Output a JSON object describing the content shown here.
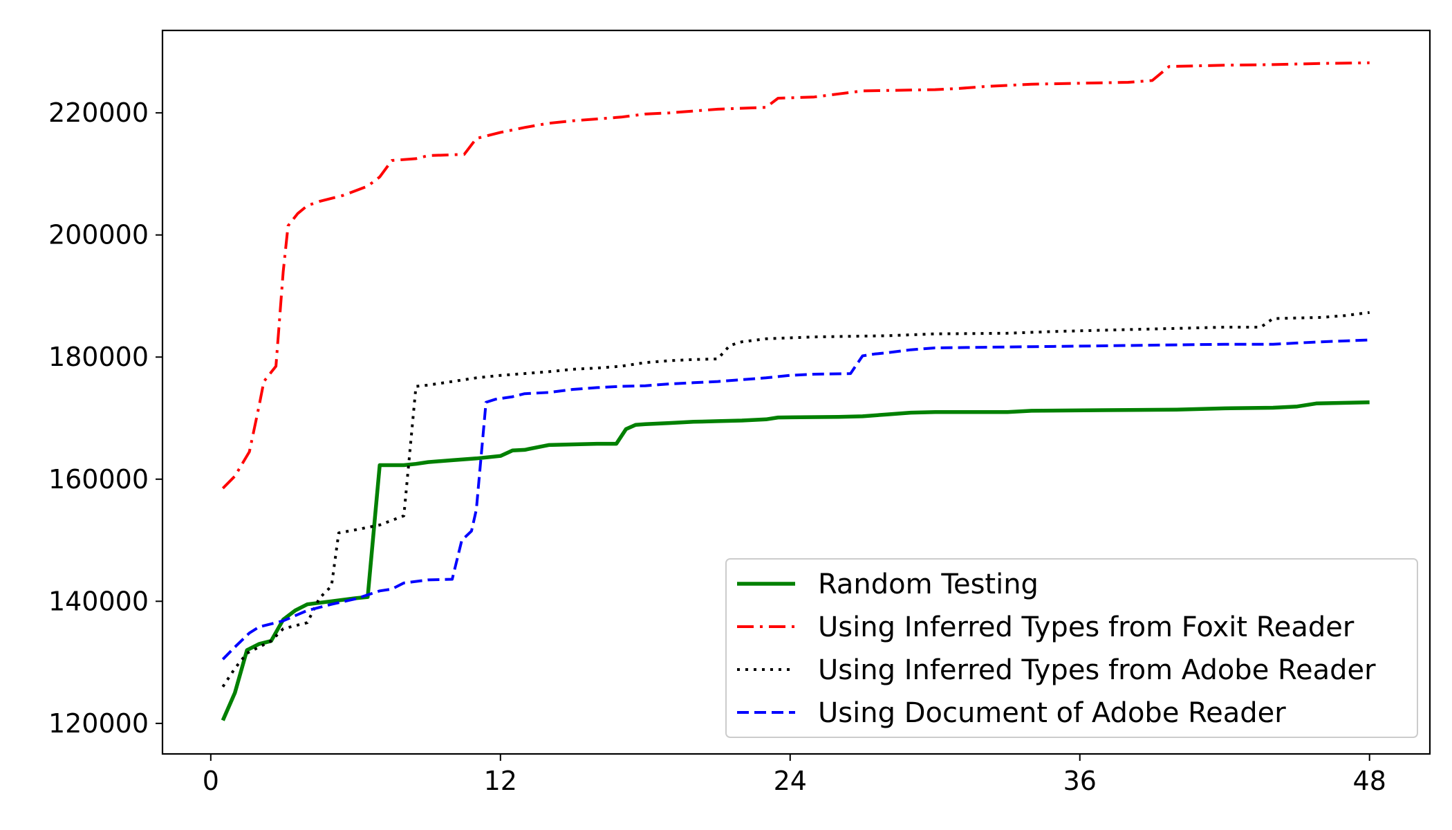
{
  "chart_data": {
    "type": "line",
    "title": "",
    "xlabel": "",
    "ylabel": "",
    "xlim": [
      -2,
      50.5
    ],
    "ylim": [
      115000,
      233500
    ],
    "x_ticks": [
      "0",
      "12",
      "24",
      "36",
      "48"
    ],
    "y_ticks": [
      "120000",
      "140000",
      "160000",
      "180000",
      "200000",
      "220000"
    ],
    "grid": false,
    "legend_position": "lower-right",
    "series": [
      {
        "name": "Random Testing",
        "color": "#008000",
        "style": "solid",
        "points": [
          [
            0.5,
            120500
          ],
          [
            1,
            125000
          ],
          [
            1.5,
            132000
          ],
          [
            2,
            133000
          ],
          [
            2.5,
            133500
          ],
          [
            3,
            137000
          ],
          [
            3.5,
            138500
          ],
          [
            4,
            139500
          ],
          [
            5,
            140000
          ],
          [
            6,
            140500
          ],
          [
            6.5,
            140700
          ],
          [
            7,
            162300
          ],
          [
            8,
            162300
          ],
          [
            8.5,
            162500
          ],
          [
            9,
            162800
          ],
          [
            10,
            163100
          ],
          [
            11,
            163400
          ],
          [
            12,
            163800
          ],
          [
            12.5,
            164700
          ],
          [
            13,
            164800
          ],
          [
            14,
            165600
          ],
          [
            15,
            165700
          ],
          [
            16,
            165800
          ],
          [
            16.8,
            165800
          ],
          [
            17.2,
            168200
          ],
          [
            17.6,
            168900
          ],
          [
            18,
            169000
          ],
          [
            19,
            169200
          ],
          [
            20,
            169400
          ],
          [
            21,
            169500
          ],
          [
            22,
            169600
          ],
          [
            23,
            169800
          ],
          [
            23.5,
            170100
          ],
          [
            26,
            170200
          ],
          [
            27,
            170300
          ],
          [
            28,
            170600
          ],
          [
            29,
            170900
          ],
          [
            30,
            171000
          ],
          [
            33,
            171000
          ],
          [
            34,
            171200
          ],
          [
            37,
            171300
          ],
          [
            40,
            171400
          ],
          [
            42,
            171600
          ],
          [
            44,
            171700
          ],
          [
            45,
            171900
          ],
          [
            45.8,
            172400
          ],
          [
            47,
            172500
          ],
          [
            48,
            172600
          ]
        ]
      },
      {
        "name": "Using Inferred Types from Foxit Reader",
        "color": "#ff0000",
        "style": "dashdot",
        "points": [
          [
            0.5,
            158500
          ],
          [
            1,
            160500
          ],
          [
            1.6,
            164500
          ],
          [
            2,
            172000
          ],
          [
            2.2,
            176000
          ],
          [
            2.5,
            177500
          ],
          [
            2.7,
            178500
          ],
          [
            3,
            194000
          ],
          [
            3.2,
            201500
          ],
          [
            3.6,
            203500
          ],
          [
            4,
            204800
          ],
          [
            4.5,
            205500
          ],
          [
            5.5,
            206500
          ],
          [
            6.5,
            208000
          ],
          [
            7,
            209500
          ],
          [
            7.5,
            212200
          ],
          [
            8.5,
            212500
          ],
          [
            9,
            213000
          ],
          [
            10.5,
            213200
          ],
          [
            11,
            215800
          ],
          [
            12,
            216800
          ],
          [
            12.5,
            217200
          ],
          [
            13,
            217600
          ],
          [
            14,
            218300
          ],
          [
            15,
            218700
          ],
          [
            16,
            219000
          ],
          [
            17,
            219300
          ],
          [
            18,
            219800
          ],
          [
            19,
            220000
          ],
          [
            20,
            220300
          ],
          [
            21,
            220600
          ],
          [
            23,
            220900
          ],
          [
            23.5,
            222400
          ],
          [
            25,
            222600
          ],
          [
            26,
            223100
          ],
          [
            27,
            223600
          ],
          [
            30,
            223800
          ],
          [
            31,
            224000
          ],
          [
            32,
            224300
          ],
          [
            34,
            224700
          ],
          [
            38,
            225000
          ],
          [
            39,
            225300
          ],
          [
            39.7,
            227600
          ],
          [
            42,
            227800
          ],
          [
            44,
            227900
          ],
          [
            46,
            228100
          ],
          [
            48,
            228200
          ]
        ]
      },
      {
        "name": "Using Inferred Types from Adobe Reader",
        "color": "#000000",
        "style": "dotted",
        "points": [
          [
            0.5,
            126000
          ],
          [
            1,
            129000
          ],
          [
            1.5,
            131500
          ],
          [
            2.5,
            133500
          ],
          [
            3,
            135500
          ],
          [
            3.5,
            136000
          ],
          [
            4,
            136500
          ],
          [
            4.5,
            140500
          ],
          [
            5,
            142500
          ],
          [
            5.3,
            151200
          ],
          [
            6,
            151700
          ],
          [
            7,
            152500
          ],
          [
            8,
            154000
          ],
          [
            8.5,
            175200
          ],
          [
            9,
            175400
          ],
          [
            10,
            176000
          ],
          [
            11,
            176600
          ],
          [
            12,
            177000
          ],
          [
            13,
            177300
          ],
          [
            14,
            177600
          ],
          [
            15,
            178000
          ],
          [
            16,
            178200
          ],
          [
            17,
            178500
          ],
          [
            18,
            179100
          ],
          [
            19,
            179400
          ],
          [
            20,
            179600
          ],
          [
            21,
            179700
          ],
          [
            21.5,
            181900
          ],
          [
            22,
            182500
          ],
          [
            23,
            183000
          ],
          [
            25,
            183300
          ],
          [
            28,
            183500
          ],
          [
            30,
            183800
          ],
          [
            33,
            183900
          ],
          [
            35,
            184200
          ],
          [
            38,
            184500
          ],
          [
            40,
            184700
          ],
          [
            42,
            184900
          ],
          [
            43.5,
            184900
          ],
          [
            44,
            186300
          ],
          [
            46,
            186500
          ],
          [
            47,
            186800
          ],
          [
            48,
            187300
          ]
        ]
      },
      {
        "name": "Using Document of Adobe Reader",
        "color": "#0000ff",
        "style": "dashed",
        "points": [
          [
            0.5,
            130500
          ],
          [
            1,
            132500
          ],
          [
            1.6,
            134800
          ],
          [
            2,
            135800
          ],
          [
            3,
            136800
          ],
          [
            4,
            138500
          ],
          [
            5,
            139500
          ],
          [
            6,
            140400
          ],
          [
            7,
            141700
          ],
          [
            7.5,
            142000
          ],
          [
            8,
            143000
          ],
          [
            9,
            143500
          ],
          [
            10,
            143600
          ],
          [
            10.4,
            150000
          ],
          [
            10.8,
            151500
          ],
          [
            11,
            155000
          ],
          [
            11.4,
            172600
          ],
          [
            11.8,
            173100
          ],
          [
            12.5,
            173500
          ],
          [
            13,
            174000
          ],
          [
            14,
            174200
          ],
          [
            15,
            174700
          ],
          [
            16,
            175000
          ],
          [
            17,
            175200
          ],
          [
            18,
            175300
          ],
          [
            19,
            175600
          ],
          [
            20,
            175800
          ],
          [
            21,
            176000
          ],
          [
            22,
            176300
          ],
          [
            23,
            176600
          ],
          [
            24,
            177000
          ],
          [
            25,
            177200
          ],
          [
            26.5,
            177300
          ],
          [
            27,
            180200
          ],
          [
            27.5,
            180500
          ],
          [
            28,
            180700
          ],
          [
            29,
            181200
          ],
          [
            30,
            181500
          ],
          [
            32,
            181600
          ],
          [
            34,
            181700
          ],
          [
            36,
            181800
          ],
          [
            38,
            181900
          ],
          [
            40,
            182000
          ],
          [
            42,
            182100
          ],
          [
            44,
            182100
          ],
          [
            45,
            182300
          ],
          [
            46,
            182500
          ],
          [
            48,
            182800
          ]
        ]
      }
    ]
  }
}
